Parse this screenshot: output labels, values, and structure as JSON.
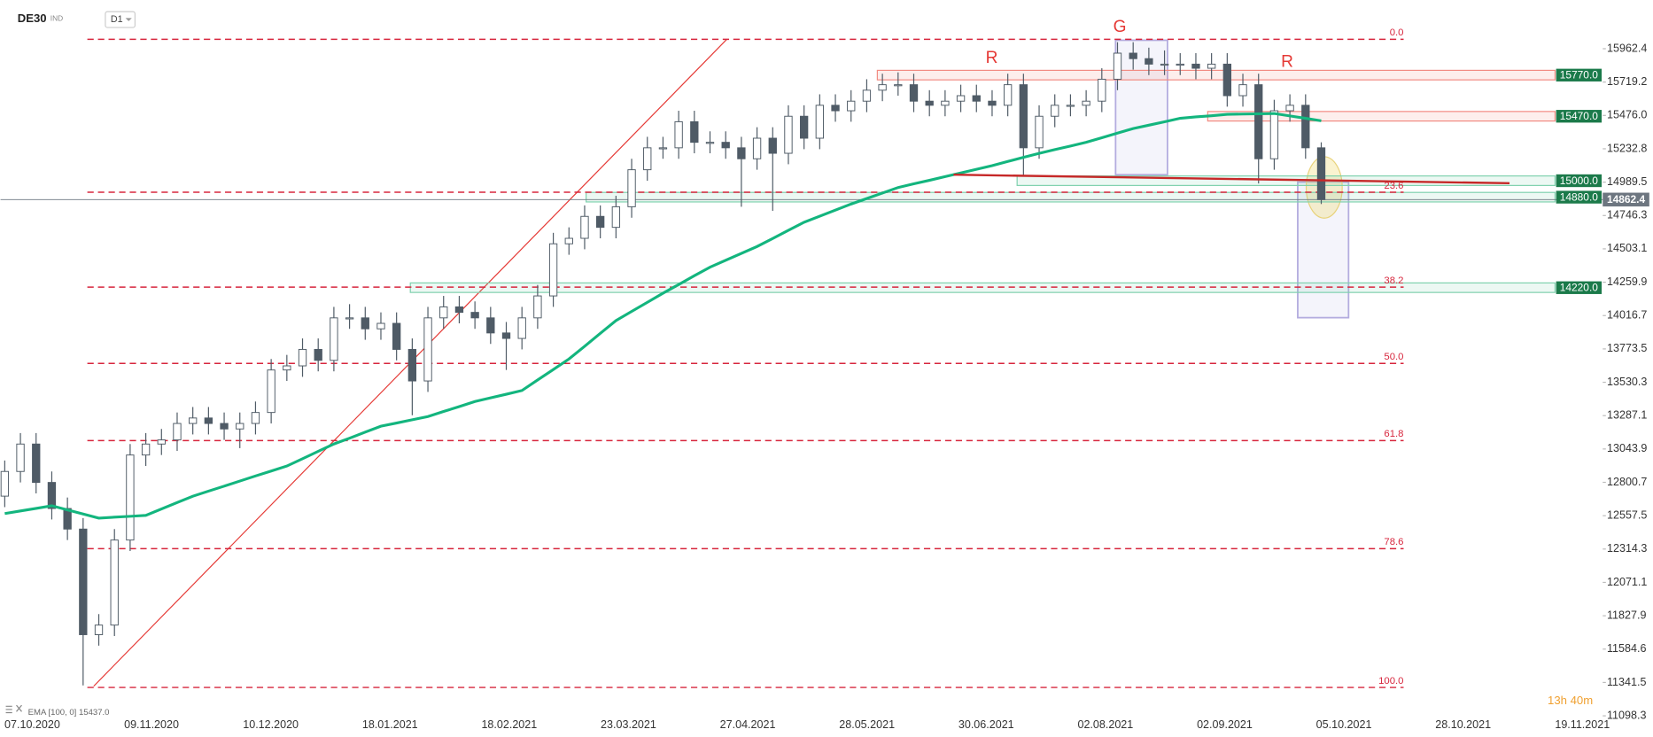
{
  "header": {
    "symbol": "DE30",
    "market": "IND",
    "timeframe": "D1"
  },
  "chart_data": {
    "type": "candlestick",
    "open": [
      12700,
      12880,
      13080,
      12800,
      12610,
      12460,
      11690,
      11760,
      12380,
      13000,
      13080,
      13110,
      13230,
      13270,
      13230,
      13190,
      13230,
      13310,
      13620,
      13650,
      13770,
      13690,
      14000,
      14000,
      13920,
      13960,
      13770,
      13540,
      14000,
      14080,
      14040,
      14000,
      13890,
      13850,
      14000,
      14160,
      14540,
      14580,
      14740,
      14660,
      14810,
      15080,
      15240,
      15240,
      15430,
      15280,
      15280,
      15240,
      15160,
      15310,
      15200,
      15470,
      15310,
      15550,
      15510,
      15580,
      15660,
      15700,
      15700,
      15580,
      15550,
      15580,
      15620,
      15580,
      15550,
      15700,
      15240,
      15470,
      15550,
      15550,
      15580,
      15740,
      15930,
      15890,
      15850,
      15850,
      15850,
      15820,
      15850,
      15620,
      15700,
      15160,
      15510,
      15550,
      15240
    ],
    "high": [
      12960,
      13160,
      13160,
      12880,
      12690,
      12540,
      11840,
      12460,
      13080,
      13160,
      13190,
      13310,
      13350,
      13350,
      13310,
      13310,
      13390,
      13700,
      13730,
      13850,
      13850,
      14080,
      14100,
      14080,
      14040,
      14040,
      13850,
      14080,
      14160,
      14160,
      14120,
      14080,
      13970,
      14080,
      14240,
      14620,
      14660,
      14820,
      14820,
      14890,
      15160,
      15320,
      15320,
      15510,
      15510,
      15360,
      15360,
      15320,
      15390,
      15390,
      15550,
      15550,
      15630,
      15630,
      15660,
      15740,
      15780,
      15790,
      15780,
      15660,
      15660,
      15700,
      15700,
      15660,
      15780,
      15780,
      15550,
      15630,
      15630,
      15660,
      15820,
      16010,
      16010,
      15970,
      15950,
      15930,
      15930,
      15930,
      15930,
      15780,
      15780,
      15590,
      15630,
      15630,
      15280
    ],
    "low": [
      12620,
      12800,
      12720,
      12530,
      12380,
      11320,
      11610,
      11680,
      12300,
      12920,
      13000,
      13030,
      13150,
      13150,
      13110,
      13050,
      13150,
      13230,
      13540,
      13570,
      13610,
      13610,
      13920,
      13840,
      13840,
      13690,
      13290,
      13460,
      13920,
      13960,
      13920,
      13810,
      13620,
      13770,
      13920,
      14080,
      14460,
      14500,
      14580,
      14580,
      14730,
      15000,
      15160,
      15160,
      15200,
      15200,
      15160,
      14810,
      15080,
      14780,
      15120,
      15230,
      15230,
      15430,
      15430,
      15500,
      15580,
      15620,
      15500,
      15470,
      15470,
      15500,
      15500,
      15470,
      15470,
      15040,
      15160,
      15390,
      15470,
      15470,
      15500,
      15660,
      15810,
      15770,
      15770,
      15770,
      15740,
      15740,
      15540,
      15540,
      14980,
      15080,
      15430,
      15160,
      14830
    ],
    "close": [
      12880,
      13080,
      12800,
      12610,
      12460,
      11690,
      11760,
      12380,
      13000,
      13080,
      13110,
      13230,
      13270,
      13230,
      13190,
      13230,
      13310,
      13620,
      13650,
      13770,
      13690,
      14000,
      14000,
      13920,
      13960,
      13770,
      13540,
      14000,
      14080,
      14040,
      14000,
      13890,
      13850,
      14000,
      14160,
      14540,
      14580,
      14740,
      14660,
      14810,
      15080,
      15240,
      15240,
      15430,
      15280,
      15280,
      15240,
      15160,
      15310,
      15200,
      15470,
      15310,
      15550,
      15510,
      15580,
      15660,
      15700,
      15700,
      15580,
      15550,
      15580,
      15620,
      15580,
      15550,
      15700,
      15240,
      15470,
      15550,
      15550,
      15580,
      15740,
      15930,
      15890,
      15850,
      15850,
      15850,
      15820,
      15850,
      15620,
      15700,
      15160,
      15510,
      15550,
      15240,
      14862.4
    ],
    "up_color": "#ffffff",
    "down_color": "#4f5b66",
    "wick_color": "#4f5b66",
    "ema": {
      "label": "EMA [100, 0] 15437.0",
      "color": "#13b57e",
      "values": [
        12573,
        12592,
        12611,
        12630,
        12600,
        12570,
        12540,
        12547,
        12553,
        12560,
        12607,
        12653,
        12700,
        12737,
        12773,
        12810,
        12847,
        12883,
        12920,
        12973,
        13027,
        13080,
        13123,
        13167,
        13210,
        13233,
        13257,
        13280,
        13317,
        13353,
        13390,
        13417,
        13443,
        13470,
        13547,
        13623,
        13700,
        13793,
        13887,
        13980,
        14047,
        14113,
        14180,
        14243,
        14307,
        14370,
        14420,
        14470,
        14520,
        14579,
        14638,
        14697,
        14741,
        14786,
        14830,
        14870,
        14910,
        14950,
        14977,
        15003,
        15030,
        15057,
        15083,
        15110,
        15140,
        15170,
        15200,
        15227,
        15253,
        15280,
        15313,
        15347,
        15380,
        15405,
        15430,
        15455,
        15465,
        15474,
        15484,
        15486,
        15488,
        15490,
        15472,
        15455,
        15437
      ]
    },
    "x_labels": [
      "07.10.2020",
      "09.11.2020",
      "10.12.2020",
      "18.01.2021",
      "18.02.2021",
      "23.03.2021",
      "27.04.2021",
      "28.05.2021",
      "30.06.2021",
      "02.08.2021",
      "02.09.2021",
      "05.10.2021",
      "28.10.2021",
      "19.11.2021"
    ],
    "ylim": [
      11098.3,
      16086
    ],
    "yticks": [
      15962.4,
      15719.2,
      {
        "value": 15476.0,
        "label": "15476.0"
      },
      15232.8,
      14989.5,
      14746.3,
      14503.1,
      14259.9,
      14016.7,
      13773.5,
      13530.3,
      13287.1,
      13043.9,
      12800.7,
      12557.5,
      12314.3,
      12071.1,
      11827.9,
      11584.6,
      11341.5,
      11098.3
    ],
    "fib_color": "#d7263d",
    "fib_levels": [
      {
        "label": "0.0",
        "value": 16031
      },
      {
        "label": "23.6",
        "value": 14916
      },
      {
        "label": "38.2",
        "value": 14224
      },
      {
        "label": "50.0",
        "value": 13668
      },
      {
        "label": "61.8",
        "value": 13105
      },
      {
        "label": "78.6",
        "value": 12317
      },
      {
        "label": "100.0",
        "value": 11305
      }
    ],
    "levels": [
      {
        "label": "15770.0",
        "value": 15770,
        "color": "#f28b82"
      },
      {
        "label": "15470.0",
        "value": 15470,
        "color": "#f28b82"
      },
      {
        "label": "15000.0",
        "value": 15000,
        "color": "#7fd1ae"
      },
      {
        "label": "14880.0",
        "value": 14880,
        "color": "#7fd1ae"
      },
      {
        "label": "14220.0",
        "value": 14220,
        "color": "#7fd1ae"
      }
    ],
    "level_label_color": "#1b7a4a",
    "last_price": 14862.4,
    "last_price_color": "#6d7680",
    "annotations": [
      "G",
      "R",
      "R"
    ],
    "timer": "13h 40m"
  }
}
